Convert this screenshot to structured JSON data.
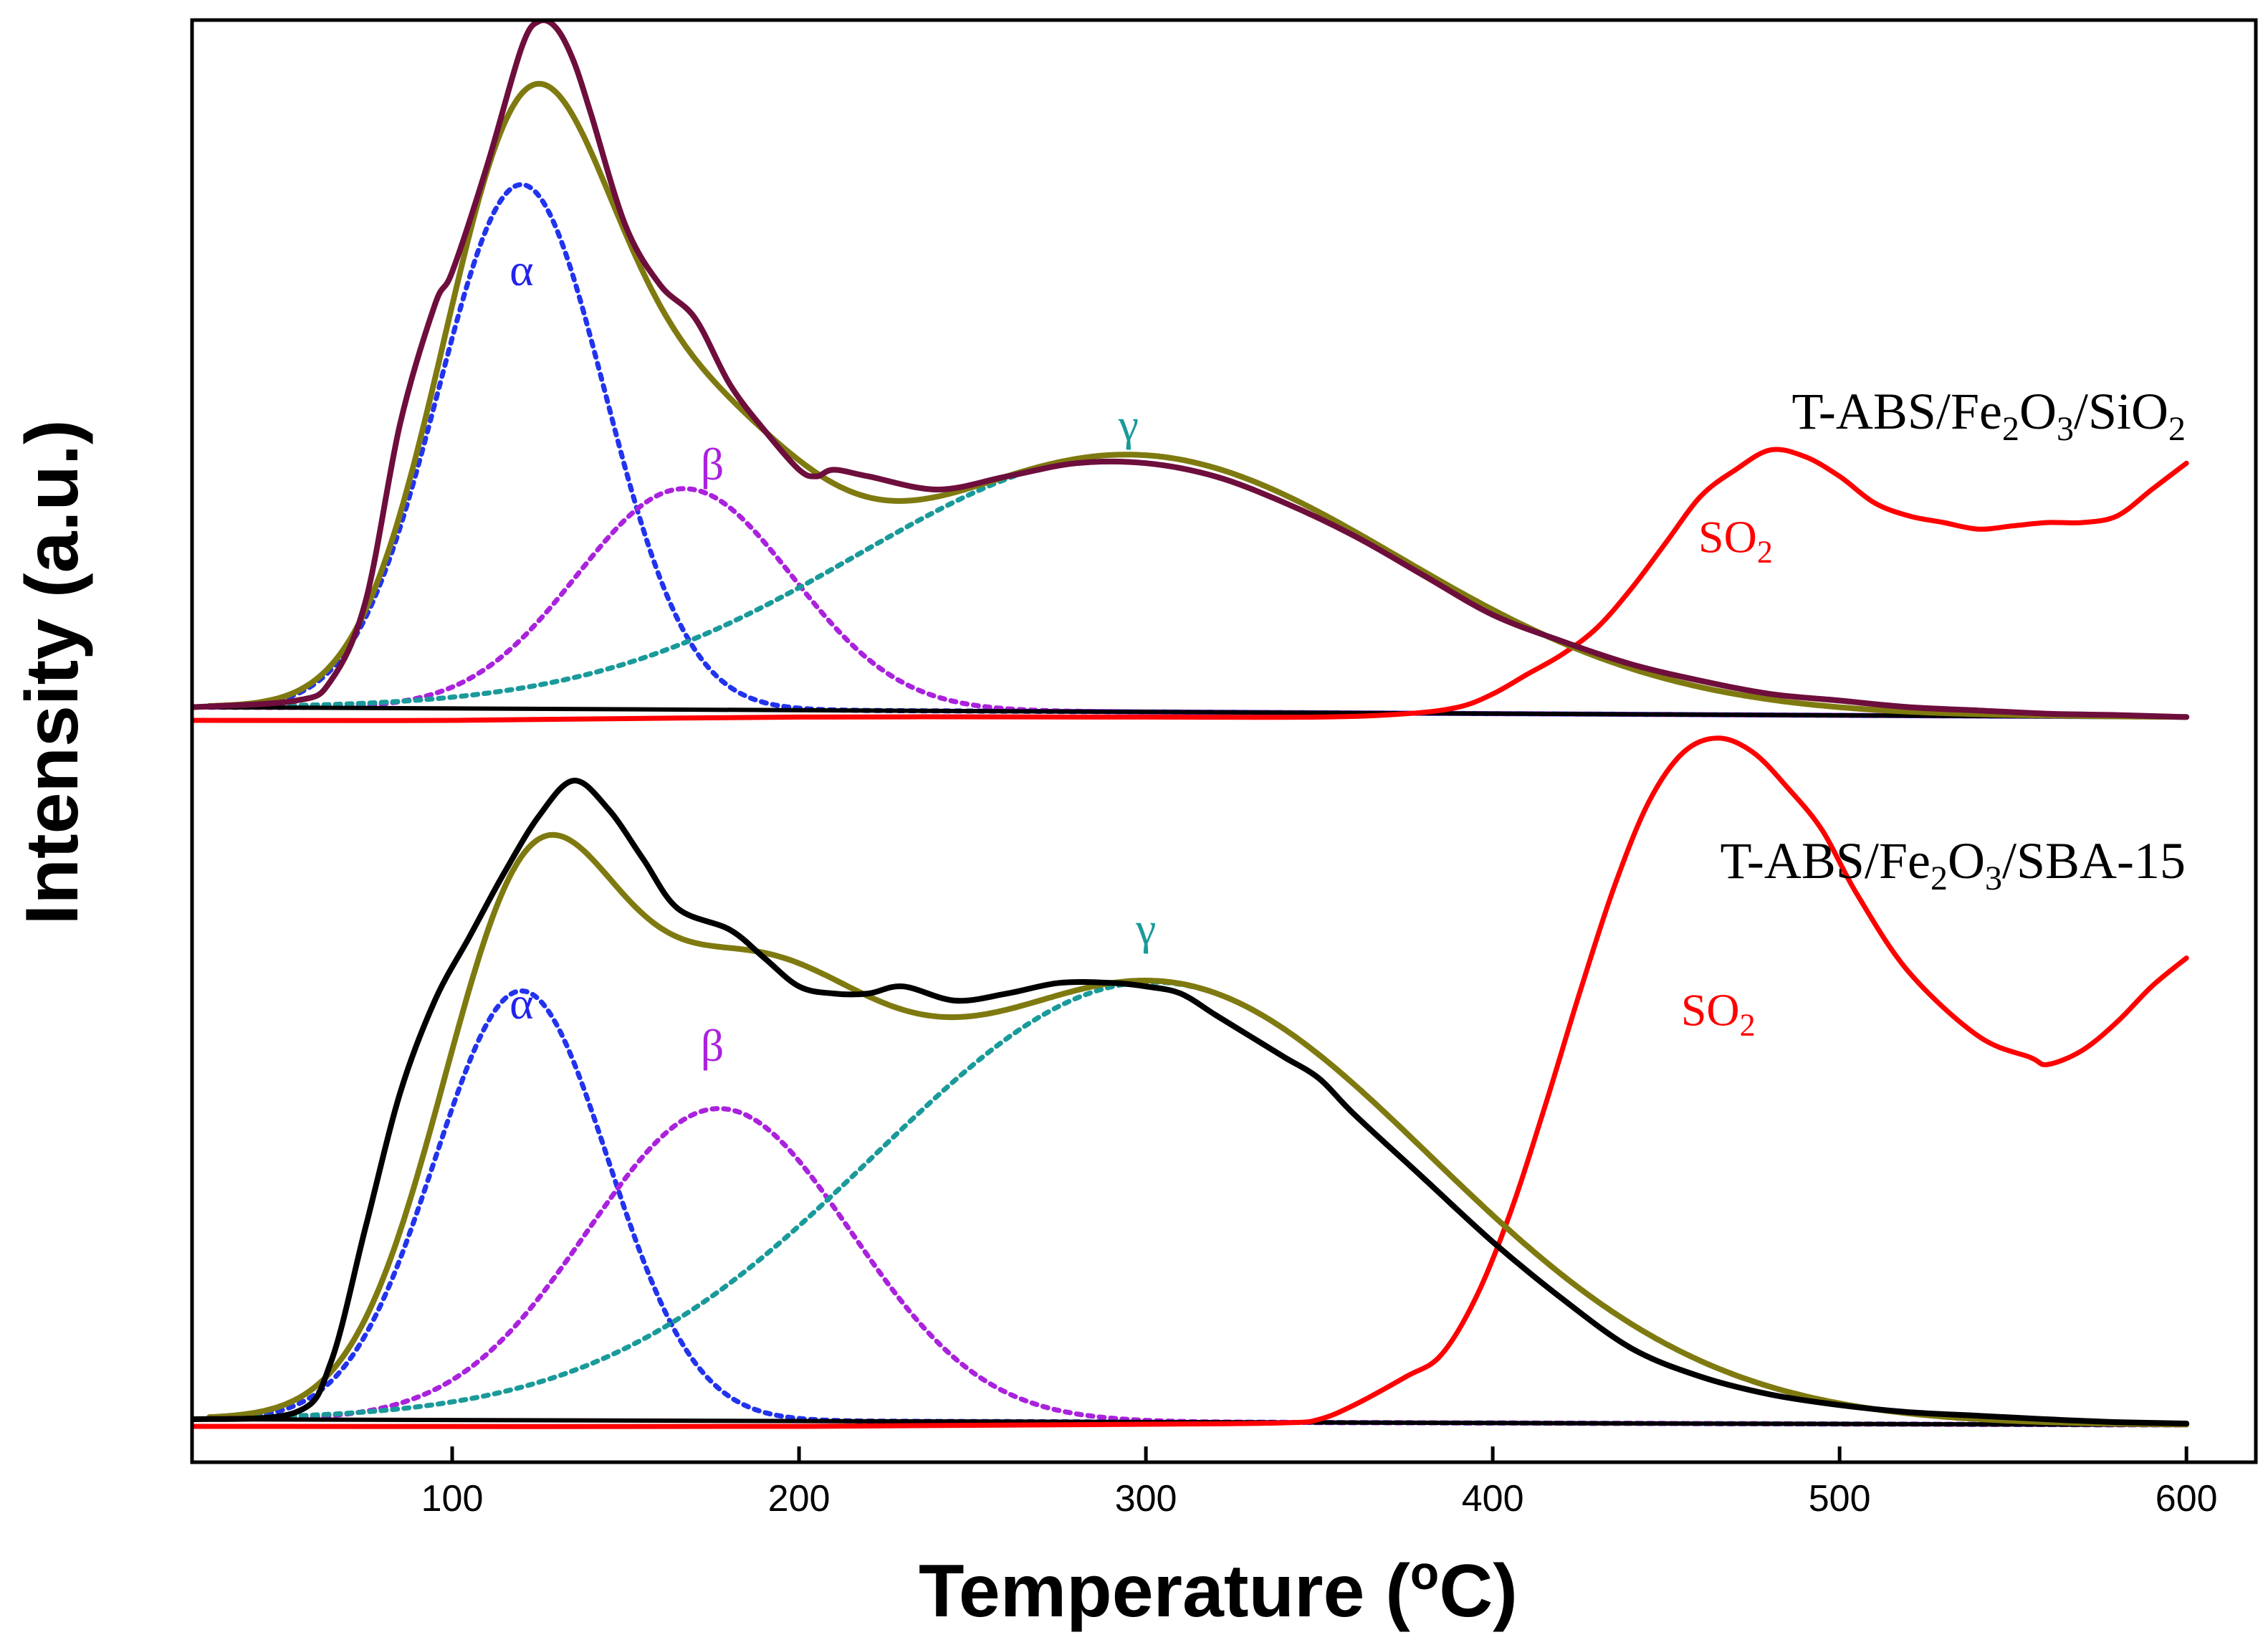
{
  "chart_data": {
    "type": "line",
    "title": "",
    "xlabel": "Temperature (°C)",
    "xlabel_parts": [
      "Temperature (",
      "o",
      "C)"
    ],
    "ylabel": "Intensity (a.u.)",
    "xlim": [
      25,
      620
    ],
    "xticks": [
      100,
      200,
      300,
      400,
      500,
      600
    ],
    "y_ticks_shown": false,
    "panels": [
      {
        "name": "T-ABS/Fe2O3/SiO2",
        "label_parts": [
          "T-ABS/Fe",
          "2",
          "O",
          "3",
          "/SiO",
          "2"
        ],
        "position": "top",
        "peak_labels": [
          {
            "text": "α",
            "x": 120,
            "y": 0.66,
            "color": "#2222ee"
          },
          {
            "text": "β",
            "x": 175,
            "y": 0.365,
            "color": "#aa22dd"
          },
          {
            "text": "γ",
            "x": 295,
            "y": 0.425,
            "color": "#1a9a9a"
          }
        ],
        "so2_label": {
          "parts": [
            "SO",
            "2"
          ],
          "x": 470,
          "y": 0.255,
          "color": "#ff0000"
        },
        "components": [
          {
            "name": "alpha",
            "type": "gaussian",
            "center": 120,
            "sigma": 24,
            "height": 0.795,
            "color": "#2233ee",
            "style": "dotted"
          },
          {
            "name": "beta",
            "type": "gaussian",
            "center": 167,
            "sigma": 31,
            "height": 0.335,
            "color": "#aa22dd",
            "style": "dotted"
          },
          {
            "name": "gamma",
            "type": "gaussian",
            "center": 295,
            "sigma": 78,
            "height": 0.39,
            "color": "#1a9a9a",
            "style": "dotted"
          }
        ],
        "series": [
          {
            "name": "measured",
            "color": "#6e0e3c",
            "x": [
              25,
              55,
              65,
              75,
              85,
              95,
              100,
              110,
              120,
              125,
              130,
              135,
              140,
              150,
              160,
              170,
              180,
              190,
              200,
              205,
              210,
              220,
              240,
              260,
              280,
              300,
              320,
              340,
              360,
              380,
              400,
              420,
              440,
              460,
              480,
              500,
              520,
              540,
              560,
              580,
              600
            ],
            "y": [
              0.02,
              0.03,
              0.06,
              0.18,
              0.45,
              0.63,
              0.68,
              0.84,
              1.02,
              1.06,
              1.05,
              1.0,
              0.92,
              0.75,
              0.66,
              0.61,
              0.51,
              0.44,
              0.38,
              0.37,
              0.38,
              0.37,
              0.35,
              0.37,
              0.39,
              0.39,
              0.37,
              0.33,
              0.28,
              0.22,
              0.16,
              0.12,
              0.085,
              0.06,
              0.04,
              0.03,
              0.02,
              0.015,
              0.01,
              0.008,
              0.005
            ]
          },
          {
            "name": "SO2",
            "color": "#ff0000",
            "x": [
              25,
              100,
              200,
              300,
              350,
              375,
              390,
              400,
              410,
              420,
              430,
              440,
              450,
              460,
              470,
              480,
              490,
              500,
              510,
              520,
              530,
              540,
              550,
              560,
              570,
              580,
              590,
              600
            ],
            "y": [
              0.0,
              0.0,
              0.005,
              0.005,
              0.005,
              0.01,
              0.02,
              0.04,
              0.07,
              0.1,
              0.14,
              0.2,
              0.27,
              0.34,
              0.38,
              0.41,
              0.4,
              0.37,
              0.33,
              0.31,
              0.3,
              0.29,
              0.295,
              0.3,
              0.3,
              0.31,
              0.35,
              0.39
            ]
          },
          {
            "name": "fit",
            "color": "#7f7a10",
            "from_components": true
          },
          {
            "name": "baseline",
            "color": "#000000",
            "x": [
              25,
              600
            ],
            "y": [
              0.02,
              0.005
            ]
          }
        ]
      },
      {
        "name": "T-ABS/Fe2O3/SBA-15",
        "label_parts": [
          "T-ABS/Fe",
          "2",
          "O",
          "3",
          "/SBA-15"
        ],
        "position": "bottom",
        "peak_labels": [
          {
            "text": "α",
            "x": 120,
            "y": 0.575,
            "color": "#2222ee"
          },
          {
            "text": "β",
            "x": 175,
            "y": 0.515,
            "color": "#aa22dd"
          },
          {
            "text": "γ",
            "x": 300,
            "y": 0.68,
            "color": "#1a9a9a"
          }
        ],
        "so2_label": {
          "parts": [
            "SO",
            "2"
          ],
          "x": 465,
          "y": 0.565,
          "color": "#ff0000"
        },
        "components": [
          {
            "name": "alpha",
            "type": "gaussian",
            "center": 120,
            "sigma": 25,
            "height": 0.605,
            "color": "#2233ee",
            "style": "dotted"
          },
          {
            "name": "beta",
            "type": "gaussian",
            "center": 177,
            "sigma": 38,
            "height": 0.44,
            "color": "#aa22dd",
            "style": "dotted"
          },
          {
            "name": "gamma",
            "type": "gaussian",
            "center": 302,
            "sigma": 80,
            "height": 0.62,
            "color": "#1a9a9a",
            "style": "dotted"
          }
        ],
        "series": [
          {
            "name": "measured",
            "color": "#000000",
            "x": [
              25,
              55,
              65,
              75,
              85,
              95,
              105,
              115,
              125,
              135,
              145,
              155,
              165,
              180,
              190,
              200,
              210,
              220,
              230,
              245,
              260,
              275,
              290,
              300,
              310,
              320,
              330,
              340,
              350,
              360,
              380,
              400,
              420,
              440,
              460,
              480,
              500,
              520,
              540,
              560,
              580,
              600
            ],
            "y": [
              0.01,
              0.02,
              0.09,
              0.28,
              0.47,
              0.6,
              0.69,
              0.78,
              0.86,
              0.91,
              0.87,
              0.8,
              0.73,
              0.7,
              0.66,
              0.62,
              0.61,
              0.61,
              0.62,
              0.6,
              0.61,
              0.625,
              0.625,
              0.62,
              0.61,
              0.58,
              0.55,
              0.52,
              0.49,
              0.44,
              0.35,
              0.26,
              0.18,
              0.11,
              0.07,
              0.045,
              0.03,
              0.02,
              0.015,
              0.01,
              0.006,
              0.004
            ]
          },
          {
            "name": "SO2",
            "color": "#ff0000",
            "x": [
              25,
              200,
              300,
              340,
              350,
              360,
              375,
              385,
              395,
              405,
              415,
              425,
              435,
              445,
              455,
              465,
              475,
              485,
              495,
              505,
              520,
              540,
              555,
              560,
              570,
              580,
              590,
              600
            ],
            "y": [
              0.0,
              0.0,
              0.003,
              0.005,
              0.01,
              0.03,
              0.07,
              0.1,
              0.18,
              0.3,
              0.45,
              0.61,
              0.76,
              0.88,
              0.95,
              0.97,
              0.95,
              0.9,
              0.84,
              0.75,
              0.64,
              0.55,
              0.52,
              0.51,
              0.53,
              0.57,
              0.62,
              0.66
            ]
          },
          {
            "name": "fit",
            "color": "#7f7a10",
            "from_components": true
          },
          {
            "name": "baseline",
            "color": "#000000",
            "x": [
              25,
              600
            ],
            "y": [
              0.01,
              0.002
            ]
          }
        ]
      }
    ]
  }
}
